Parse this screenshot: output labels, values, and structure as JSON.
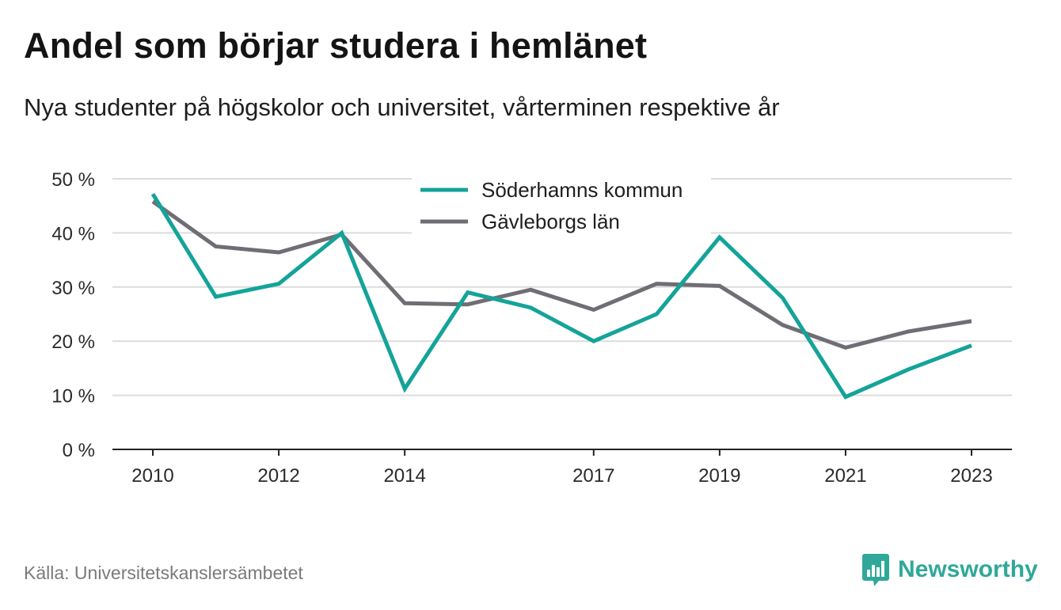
{
  "title": "Andel som börjar studera i hemlänet",
  "subtitle": "Nya studenter på högskolor och universitet, vårterminen respektive år",
  "source": "Källa: Universitetskanslersämbetet",
  "brand": {
    "name": "Newsworthy",
    "icon": "bar-chart-speech-bubble-icon",
    "color": "#2fa89a"
  },
  "chart_data": {
    "type": "line",
    "x": [
      2010,
      2011,
      2012,
      2013,
      2014,
      2015,
      2016,
      2017,
      2018,
      2019,
      2020,
      2021,
      2022,
      2023
    ],
    "xticks": [
      2010,
      2012,
      2014,
      2017,
      2019,
      2021,
      2023
    ],
    "ylim": [
      0,
      50
    ],
    "yticks": [
      0,
      10,
      20,
      30,
      40,
      50
    ],
    "ytick_labels": [
      "0 %",
      "10 %",
      "20 %",
      "30 %",
      "40 %",
      "50 %"
    ],
    "grid": true,
    "legend_position": "top-center",
    "series": [
      {
        "name": "Söderhamns kommun",
        "color": "#14a399",
        "values": [
          47.2,
          28.2,
          30.6,
          40.0,
          11.2,
          29.0,
          26.2,
          20.0,
          25.0,
          39.2,
          28.0,
          9.7,
          14.8,
          19.2
        ]
      },
      {
        "name": "Gävleborgs län",
        "color": "#706d74",
        "values": [
          45.8,
          37.5,
          36.4,
          39.7,
          27.0,
          26.8,
          29.5,
          25.8,
          30.6,
          30.2,
          23.0,
          18.8,
          21.8,
          23.7
        ]
      }
    ]
  }
}
